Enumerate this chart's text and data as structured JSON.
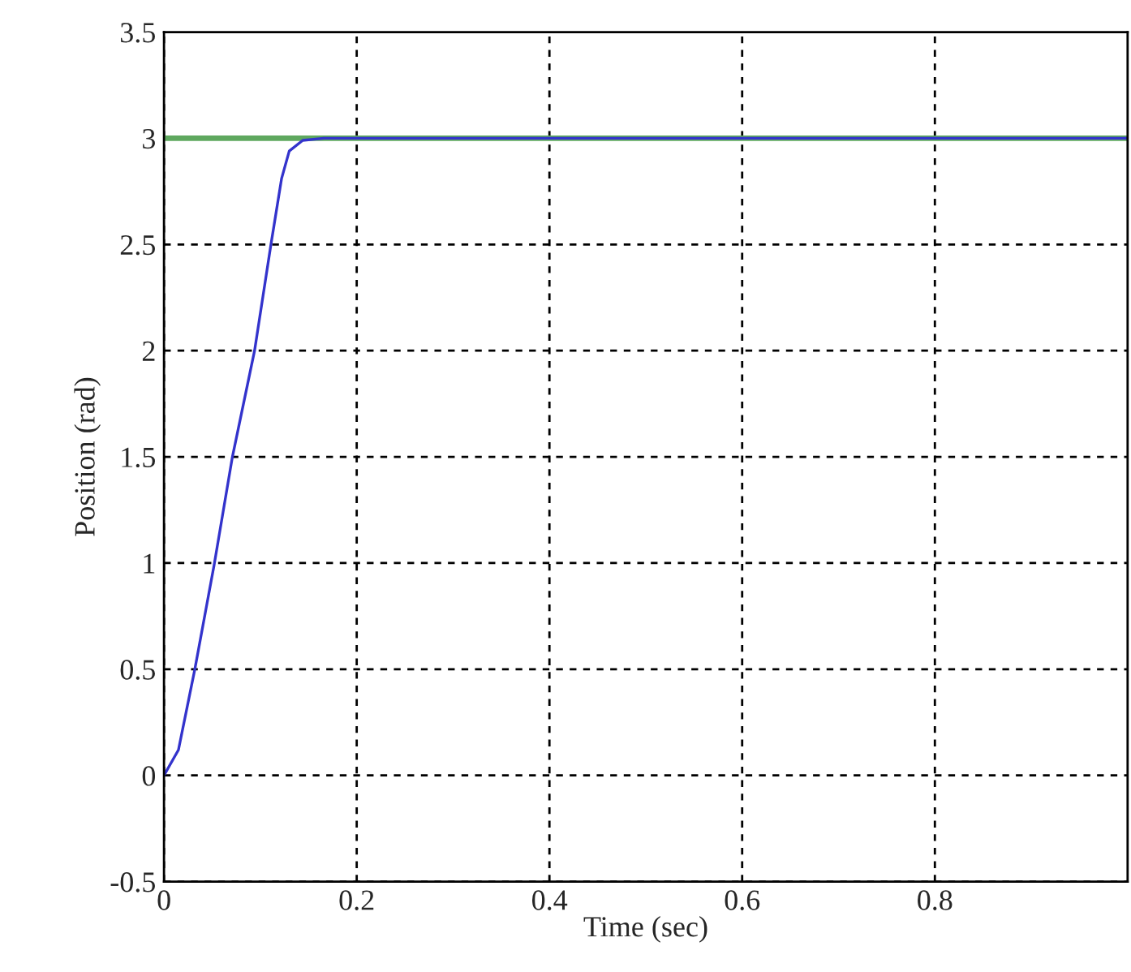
{
  "chart_data": {
    "type": "line",
    "xlabel": "Time (sec)",
    "ylabel": "Position (rad)",
    "series": [
      {
        "color": "#5fa85f",
        "x": [
          0,
          1.0
        ],
        "values": [
          3,
          3
        ]
      },
      {
        "color": "#3333cc",
        "x": [
          0,
          0.015,
          0.032,
          0.052,
          0.071,
          0.094,
          0.111,
          0.122,
          0.13,
          0.144,
          0.166,
          1.0
        ],
        "values": [
          0,
          0.12,
          0.5,
          0.99,
          1.5,
          2.0,
          2.5,
          2.81,
          2.94,
          2.99,
          3.0,
          3.0
        ]
      }
    ],
    "xlim": [
      0,
      1.0
    ],
    "xticks": [
      0,
      0.2,
      0.4,
      0.6,
      0.8
    ],
    "ylim": [
      -0.5,
      3.5
    ],
    "yticks": [
      -0.5,
      0,
      0.5,
      1,
      1.5,
      2,
      2.5,
      3,
      3.5
    ],
    "grid": true,
    "line_style": "solid",
    "marker": "none"
  }
}
